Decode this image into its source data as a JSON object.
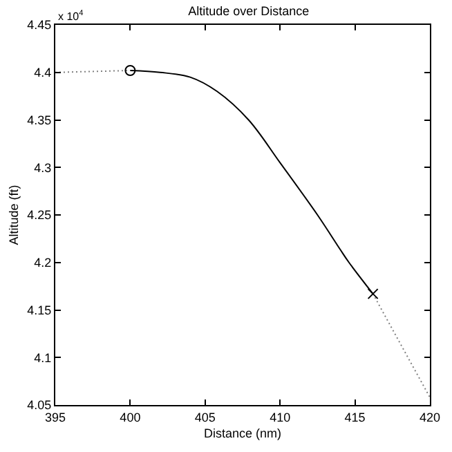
{
  "chart_data": {
    "type": "line",
    "title": "Altitude over Distance",
    "xlabel": "Distance (nm)",
    "ylabel": "Altitude (ft)",
    "annotations": [
      "x 10$^{4}$"
    ],
    "xlim": [
      395,
      420
    ],
    "xticks": [
      395,
      400,
      405,
      410,
      415,
      420
    ],
    "ylim": [
      4.05,
      4.45
    ],
    "yticks": [
      4.05,
      4.1,
      4.15,
      4.2,
      4.25,
      4.3,
      4.35,
      4.4,
      4.45
    ],
    "legend": false,
    "series": [
      {
        "line_style": "dotted",
        "marker": "none",
        "color": "#808080",
        "x": [
          395,
          400
        ],
        "values": [
          4.4,
          4.402
        ]
      },
      {
        "line_style": "solid",
        "marker": "none",
        "color": "#000000",
        "x": [
          400,
          402,
          404,
          405.8,
          407.9,
          410,
          412.5,
          414,
          414.6,
          416.2
        ],
        "values": [
          4.402,
          4.4,
          4.395,
          4.38,
          4.35,
          4.305,
          4.25,
          4.214,
          4.2,
          4.167
        ]
      },
      {
        "line_style": "dotted",
        "marker": "none",
        "color": "#808080",
        "x": [
          416.2,
          420
        ],
        "values": [
          4.167,
          4.058
        ]
      },
      {
        "type": "scatter",
        "marker": "circle",
        "color": "#000000",
        "x": [
          400
        ],
        "values": [
          4.402
        ]
      },
      {
        "type": "scatter",
        "marker": "cross",
        "color": "#000000",
        "x": [
          416.2
        ],
        "values": [
          4.167
        ]
      }
    ]
  }
}
